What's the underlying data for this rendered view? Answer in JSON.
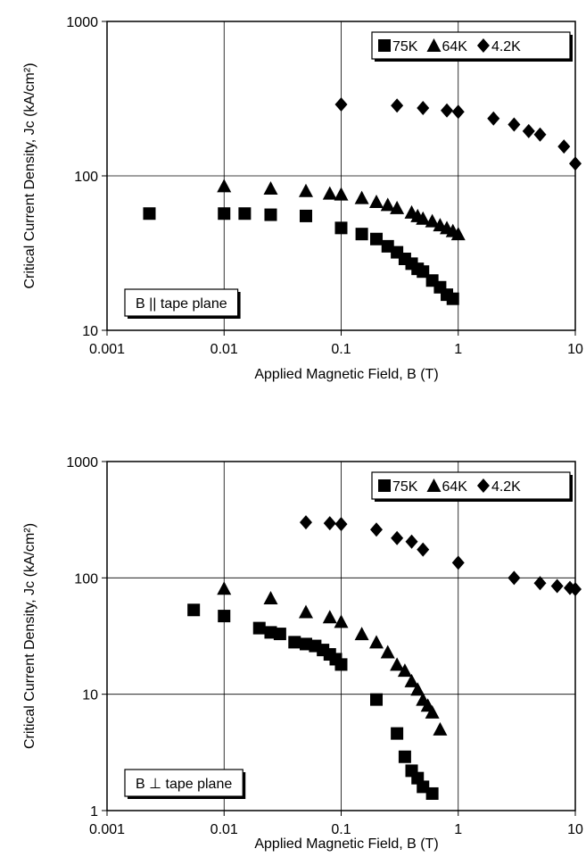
{
  "chart_data": [
    {
      "type": "scatter",
      "xscale": "log",
      "yscale": "log",
      "xlim": [
        0.001,
        10
      ],
      "ylim": [
        10,
        1000
      ],
      "xticks": [
        "0.001",
        "0.01",
        "0.1",
        "1",
        "10"
      ],
      "yticks": [
        "10",
        "100",
        "1000"
      ],
      "xlabel": "Applied Magnetic Field, B (T)",
      "ylabel": "Critical Current Density, Jc (kA/cm²)",
      "grid": true,
      "legend_position": "top-right",
      "annotation": "B || tape plane",
      "series": [
        {
          "name": "75K",
          "marker": "square",
          "x": [
            0.0023,
            0.01,
            0.015,
            0.025,
            0.05,
            0.1,
            0.15,
            0.2,
            0.25,
            0.3,
            0.35,
            0.4,
            0.45,
            0.5,
            0.6,
            0.7,
            0.8,
            0.9
          ],
          "y": [
            57,
            57,
            57,
            56,
            55,
            46,
            42,
            39,
            35,
            32,
            29,
            27,
            25,
            24,
            21,
            19,
            17,
            16
          ]
        },
        {
          "name": "64K",
          "marker": "triangle",
          "x": [
            0.01,
            0.025,
            0.05,
            0.08,
            0.1,
            0.15,
            0.2,
            0.25,
            0.3,
            0.4,
            0.45,
            0.5,
            0.6,
            0.7,
            0.8,
            0.9,
            1.0
          ],
          "y": [
            86,
            83,
            80,
            77,
            76,
            72,
            68,
            65,
            62,
            58,
            55,
            53,
            51,
            48,
            46,
            44,
            42
          ]
        },
        {
          "name": "4.2K",
          "marker": "diamond",
          "x": [
            0.1,
            0.3,
            0.5,
            0.8,
            1.0,
            2,
            3,
            4,
            5,
            8,
            10
          ],
          "y": [
            290,
            285,
            275,
            265,
            260,
            235,
            215,
            195,
            185,
            155,
            120
          ]
        }
      ]
    },
    {
      "type": "scatter",
      "xscale": "log",
      "yscale": "log",
      "xlim": [
        0.001,
        10
      ],
      "ylim": [
        1,
        1000
      ],
      "xticks": [
        "0.001",
        "0.01",
        "0.1",
        "1",
        "10"
      ],
      "yticks": [
        "1",
        "10",
        "100",
        "1000"
      ],
      "xlabel": "Applied Magnetic Field, B (T)",
      "ylabel": "Critical Current Density, Jc (kA/cm²)",
      "grid": true,
      "legend_position": "top-right",
      "annotation": "B ⊥ tape plane",
      "series": [
        {
          "name": "75K",
          "marker": "square",
          "x": [
            0.0055,
            0.01,
            0.02,
            0.025,
            0.03,
            0.04,
            0.05,
            0.06,
            0.07,
            0.08,
            0.09,
            0.1,
            0.2,
            0.3,
            0.35,
            0.4,
            0.45,
            0.5,
            0.6
          ],
          "y": [
            53,
            47,
            37,
            34,
            33,
            28,
            27,
            26,
            24,
            22,
            20,
            18,
            9,
            4.6,
            2.9,
            2.2,
            1.9,
            1.6,
            1.4
          ]
        },
        {
          "name": "64K",
          "marker": "triangle",
          "x": [
            0.01,
            0.025,
            0.05,
            0.08,
            0.1,
            0.15,
            0.2,
            0.25,
            0.3,
            0.35,
            0.4,
            0.45,
            0.5,
            0.55,
            0.6,
            0.7
          ],
          "y": [
            81,
            67,
            51,
            46,
            42,
            33,
            28,
            23,
            18,
            16,
            13,
            11,
            9,
            8,
            7,
            5
          ]
        },
        {
          "name": "4.2K",
          "marker": "diamond",
          "x": [
            0.05,
            0.08,
            0.1,
            0.2,
            0.3,
            0.4,
            0.5,
            1.0,
            3,
            5,
            7,
            9,
            10
          ],
          "y": [
            300,
            295,
            290,
            260,
            220,
            205,
            175,
            135,
            100,
            90,
            85,
            82,
            80
          ]
        }
      ]
    }
  ]
}
